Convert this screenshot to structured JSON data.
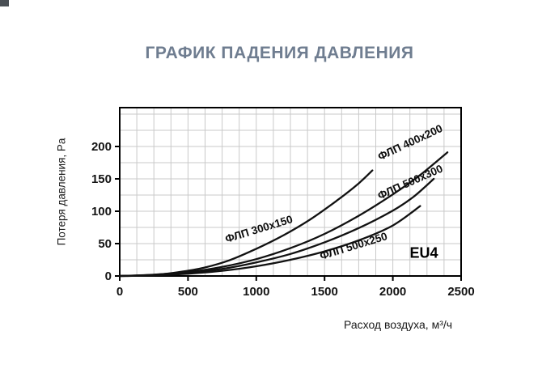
{
  "title": "ГРАФИК ПАДЕНИЯ ДАВЛЕНИЯ",
  "chart_data": {
    "type": "line",
    "title": "ГРАФИК ПАДЕНИЯ ДАВЛЕНИЯ",
    "xlabel": "Расход воздуха, м³/ч",
    "ylabel": "Потеря давления, Pa",
    "xlim": [
      0,
      2500
    ],
    "ylim": [
      0,
      260
    ],
    "xticks": [
      0,
      500,
      1000,
      1500,
      2000,
      2500
    ],
    "yticks": [
      0,
      50,
      100,
      150,
      200
    ],
    "x_minor_step": 125,
    "y_minor_step": 25,
    "grid": true,
    "legend_position": "labels-on-curves",
    "annotation": "EU4",
    "series": [
      {
        "name": "ФЛП 300x150",
        "points": [
          [
            0,
            0
          ],
          [
            200,
            1
          ],
          [
            400,
            5
          ],
          [
            600,
            12
          ],
          [
            800,
            24
          ],
          [
            1000,
            42
          ],
          [
            1200,
            63
          ],
          [
            1400,
            88
          ],
          [
            1600,
            118
          ],
          [
            1750,
            143
          ],
          [
            1850,
            163
          ]
        ]
      },
      {
        "name": "ФЛП 400x200",
        "points": [
          [
            0,
            0
          ],
          [
            250,
            2
          ],
          [
            500,
            6
          ],
          [
            750,
            14
          ],
          [
            1000,
            26
          ],
          [
            1250,
            43
          ],
          [
            1500,
            65
          ],
          [
            1750,
            93
          ],
          [
            2000,
            126
          ],
          [
            2200,
            156
          ],
          [
            2400,
            191
          ]
        ]
      },
      {
        "name": "ФЛП 500x300",
        "points": [
          [
            0,
            0
          ],
          [
            250,
            1.5
          ],
          [
            500,
            5
          ],
          [
            750,
            11
          ],
          [
            1000,
            21
          ],
          [
            1250,
            34
          ],
          [
            1500,
            52
          ],
          [
            1750,
            74
          ],
          [
            2000,
            101
          ],
          [
            2150,
            122
          ],
          [
            2300,
            150
          ]
        ]
      },
      {
        "name": "ФЛП 500x250",
        "points": [
          [
            0,
            0
          ],
          [
            250,
            1
          ],
          [
            500,
            3.5
          ],
          [
            750,
            8
          ],
          [
            1000,
            15
          ],
          [
            1250,
            25
          ],
          [
            1500,
            38
          ],
          [
            1750,
            55
          ],
          [
            2000,
            78
          ],
          [
            2200,
            108
          ]
        ]
      }
    ]
  },
  "colors": {
    "title": "#6f7d90",
    "curve": "#111111",
    "grid": "#c9c9c9",
    "axis": "#000000",
    "tick_label": "#141414",
    "background": "#ffffff"
  }
}
